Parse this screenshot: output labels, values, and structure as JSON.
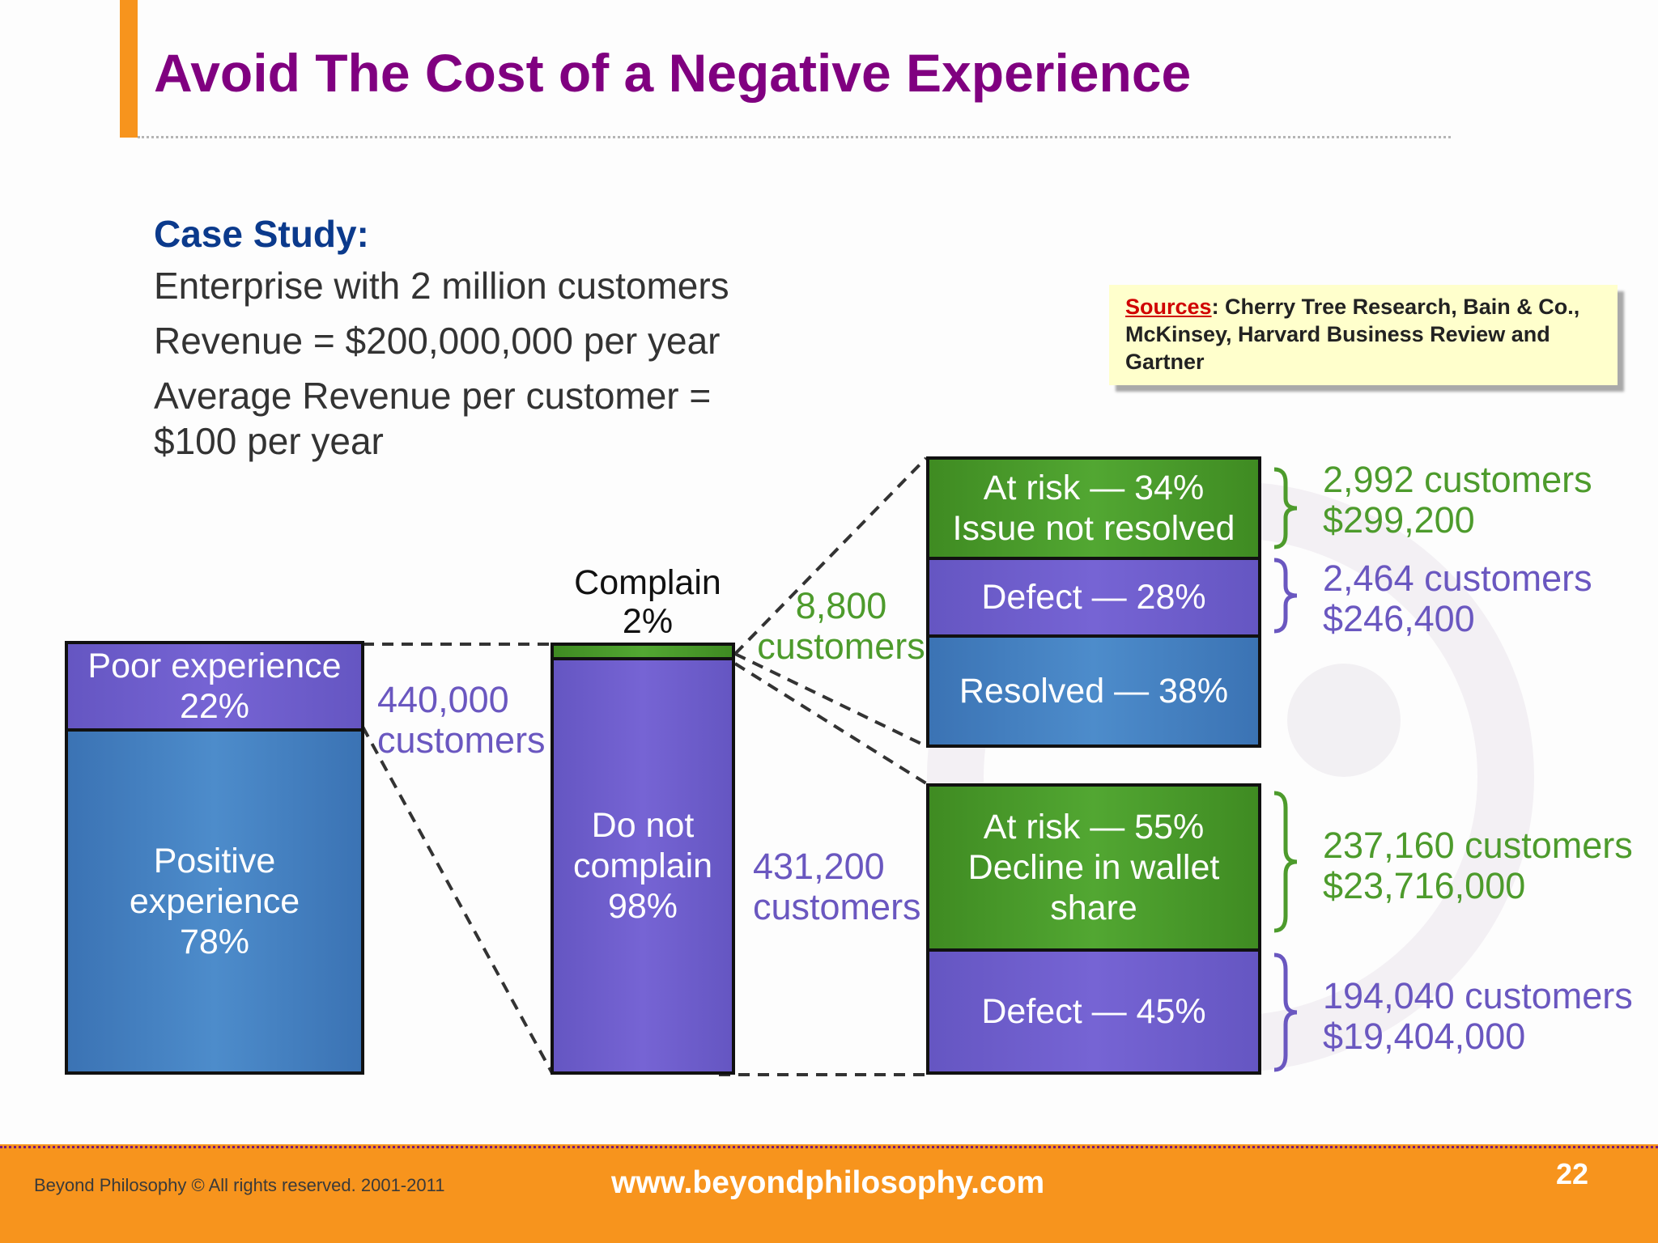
{
  "title": "Avoid The Cost of a Negative Experience",
  "case_study": {
    "heading": "Case Study:",
    "line1": "Enterprise with 2 million customers",
    "line2": "Revenue = $200,000,000 per year",
    "line3": "Average Revenue per customer =",
    "line4": "$100 per year"
  },
  "sources": {
    "label": "Sources",
    "text": ": Cherry Tree Research, Bain & Co., McKinsey, Harvard Business Review and Gartner"
  },
  "experience": {
    "poor_line1": "Poor experience",
    "poor_line2": "22%",
    "positive_line1": "Positive",
    "positive_line2": "experience",
    "positive_line3": "78%",
    "poor_customers_line1": "440,000",
    "poor_customers_line2": "customers"
  },
  "complaints": {
    "complain_line1": "Complain",
    "complain_line2": "2%",
    "not_line1": "Do not",
    "not_line2": "complain",
    "not_line3": "98%",
    "complain_customers_line1": "8,800",
    "complain_customers_line2": "customers",
    "not_customers_line1": "431,200",
    "not_customers_line2": "customers"
  },
  "complainers": {
    "at_risk_line1": "At risk — 34%",
    "at_risk_line2": "Issue not resolved",
    "defect": "Defect — 28%",
    "resolved": "Resolved — 38%",
    "at_risk_outcome_line1": "2,992 customers",
    "at_risk_outcome_line2": "$299,200",
    "defect_outcome_line1": "2,464 customers",
    "defect_outcome_line2": "$246,400"
  },
  "non_complainers": {
    "at_risk_line1": "At risk — 55%",
    "at_risk_line2": "Decline in wallet",
    "at_risk_line3": "share",
    "defect": "Defect — 45%",
    "at_risk_outcome_line1": "237,160 customers",
    "at_risk_outcome_line2": "$23,716,000",
    "defect_outcome_line1": "194,040 customers",
    "defect_outcome_line2": "$19,404,000"
  },
  "footer": {
    "copyright": "Beyond Philosophy © All rights reserved. 2001-2011",
    "website": "www.beyondphilosophy.com",
    "page_number": "22"
  },
  "colors": {
    "title": "#800080",
    "accent_orange": "#f7941d",
    "blue": "#4a86c8",
    "purple": "#7060d0",
    "green": "#4c9e2e"
  }
}
